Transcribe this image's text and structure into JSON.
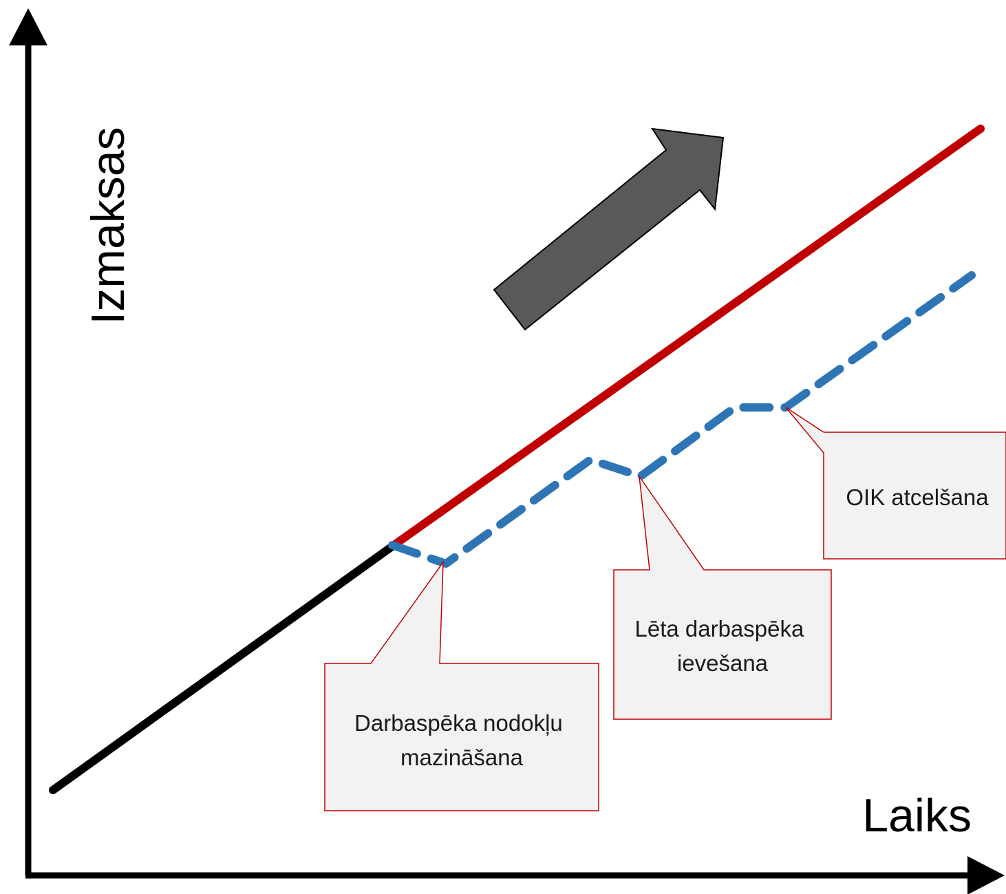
{
  "axes": {
    "y_label": "Izmaksas",
    "x_label": "Laiks"
  },
  "colors": {
    "axis": "#000000",
    "baseline": "#000000",
    "projected_costs": "#c00000",
    "reduced_costs": "#2e75b6",
    "trend_arrow": "#595959",
    "callout_border": "#c00000",
    "callout_fill": "#f2f2f2"
  },
  "callouts": [
    {
      "lines": [
        "Darbaspēka nodokļu",
        "mazināšana"
      ]
    },
    {
      "lines": [
        "Lēta darbaspēka",
        "ievešana"
      ]
    },
    {
      "lines": [
        "OIK atcelšana"
      ]
    }
  ],
  "icons": {
    "trend": "up-right-arrow-icon"
  }
}
